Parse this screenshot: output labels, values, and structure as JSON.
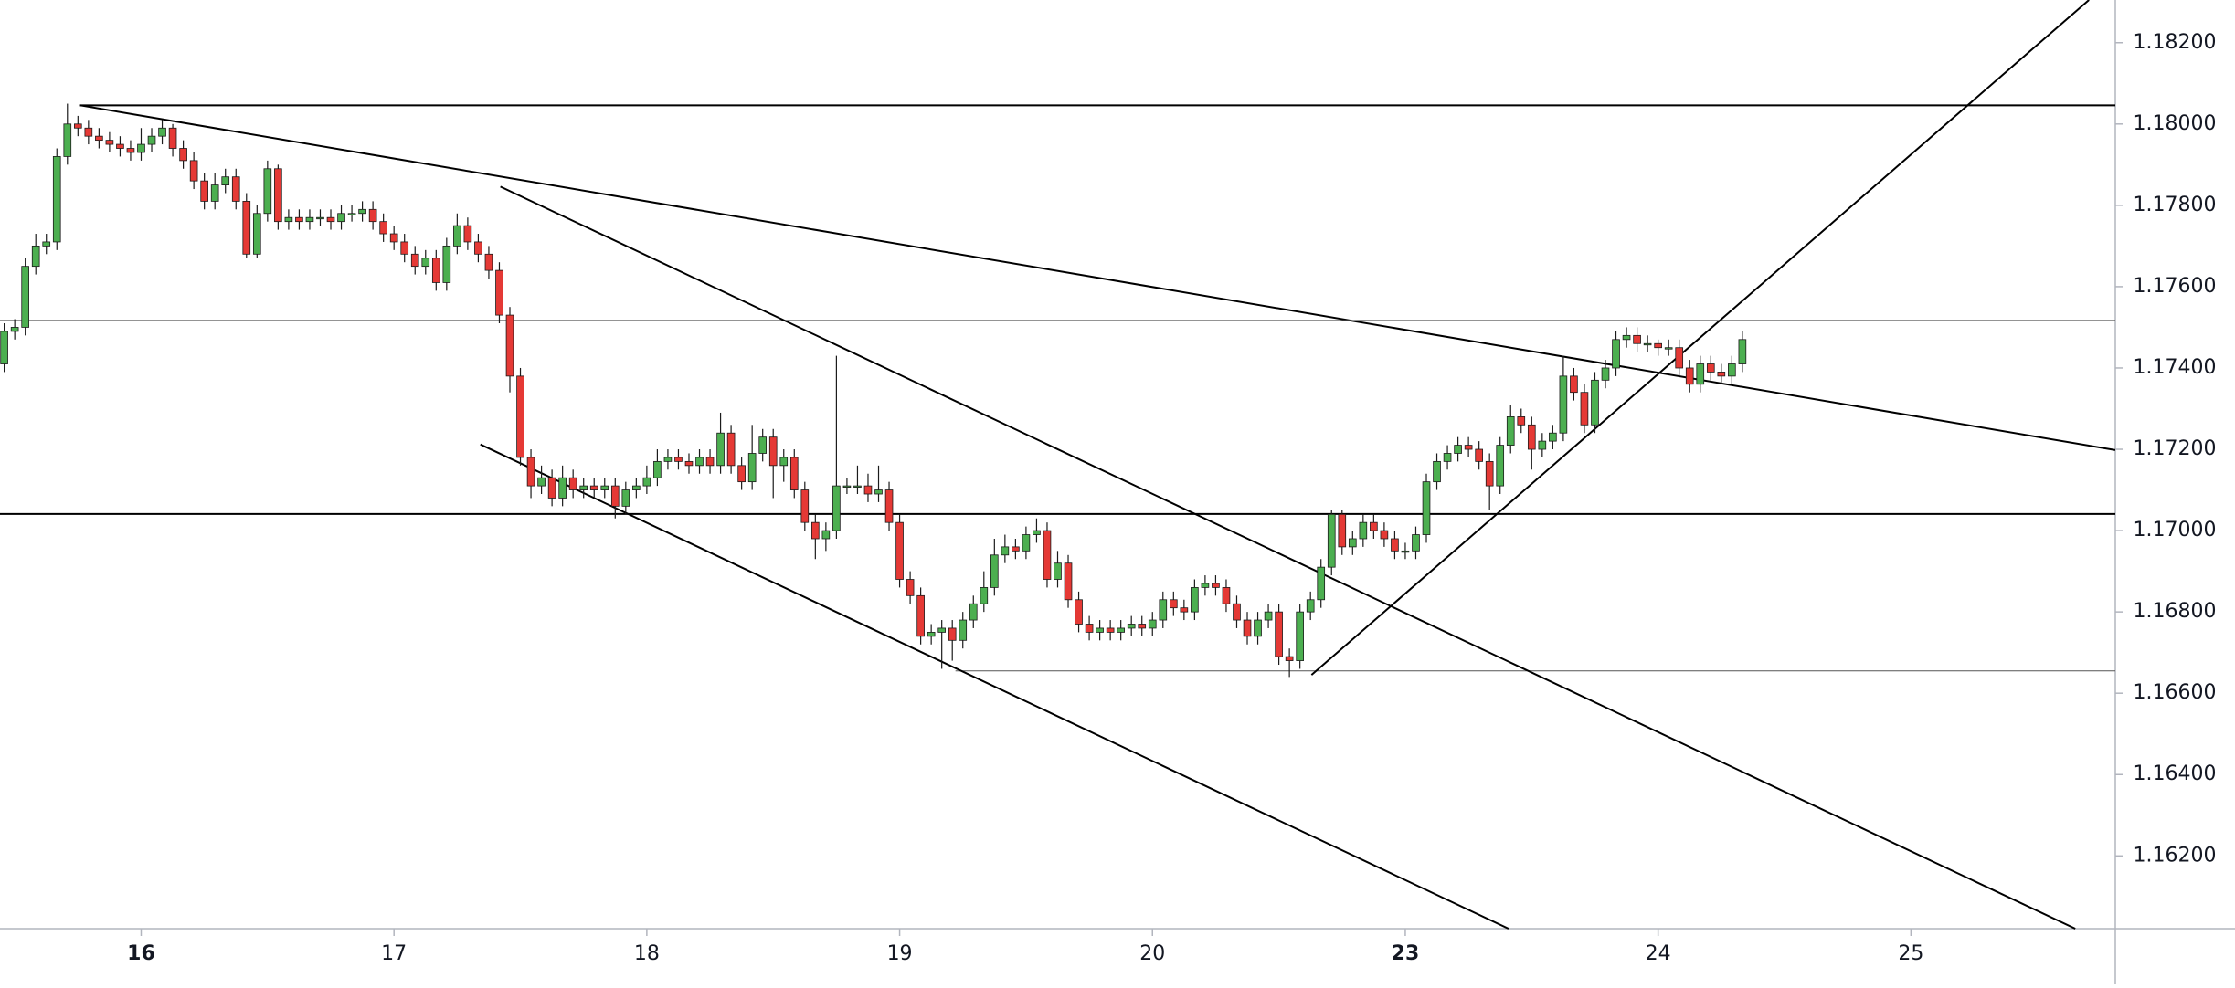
{
  "chart_data": {
    "type": "candlestick",
    "xlim": [
      -0.4,
      200.4
    ],
    "ylim": [
      1.16021,
      1.18305
    ],
    "yticks": [
      {
        "value": 1.162,
        "label": "1.16200"
      },
      {
        "value": 1.164,
        "label": "1.16400"
      },
      {
        "value": 1.166,
        "label": "1.16600"
      },
      {
        "value": 1.168,
        "label": "1.16800"
      },
      {
        "value": 1.17,
        "label": "1.17000"
      },
      {
        "value": 1.172,
        "label": "1.17200"
      },
      {
        "value": 1.174,
        "label": "1.17400"
      },
      {
        "value": 1.176,
        "label": "1.17600"
      },
      {
        "value": 1.178,
        "label": "1.17800"
      },
      {
        "value": 1.18,
        "label": "1.18000"
      },
      {
        "value": 1.182,
        "label": "1.18200"
      }
    ],
    "xticks": [
      {
        "value": 13,
        "label": "16",
        "bold": true
      },
      {
        "value": 37,
        "label": "17"
      },
      {
        "value": 61,
        "label": "18"
      },
      {
        "value": 85,
        "label": "19"
      },
      {
        "value": 109,
        "label": "20"
      },
      {
        "value": 133,
        "label": "23",
        "bold": true
      },
      {
        "value": 157,
        "label": "24"
      },
      {
        "value": 181,
        "label": "25"
      }
    ],
    "up_color": "#4caf50",
    "down_color": "#e53935",
    "border_color": "#1b1b1b",
    "open": [
      1.1741,
      1.1749,
      1.175,
      1.1765,
      1.177,
      1.1771,
      1.1792,
      1.18,
      1.1799,
      1.1797,
      1.1796,
      1.1795,
      1.1794,
      1.1793,
      1.1795,
      1.1797,
      1.1799,
      1.1794,
      1.1791,
      1.1786,
      1.1781,
      1.1785,
      1.1787,
      1.1781,
      1.1768,
      1.1778,
      1.1789,
      1.1776,
      1.1777,
      1.1776,
      1.1777,
      1.1777,
      1.1776,
      1.1778,
      1.1778,
      1.1779,
      1.1776,
      1.1773,
      1.1771,
      1.1768,
      1.1765,
      1.1767,
      1.1761,
      1.177,
      1.1775,
      1.1771,
      1.1768,
      1.1764,
      1.1753,
      1.1738,
      1.1718,
      1.1711,
      1.1713,
      1.1708,
      1.1713,
      1.171,
      1.1711,
      1.171,
      1.1711,
      1.1706,
      1.171,
      1.1711,
      1.1713,
      1.1717,
      1.1718,
      1.1717,
      1.1716,
      1.1718,
      1.1716,
      1.1724,
      1.1716,
      1.1712,
      1.1719,
      1.1723,
      1.1716,
      1.1718,
      1.171,
      1.1702,
      1.1698,
      1.17,
      1.1711,
      1.1711,
      1.1711,
      1.1709,
      1.171,
      1.1702,
      1.1688,
      1.1684,
      1.1674,
      1.1675,
      1.1676,
      1.1673,
      1.1678,
      1.1682,
      1.1686,
      1.1694,
      1.1696,
      1.1695,
      1.1699,
      1.17,
      1.1688,
      1.1692,
      1.1683,
      1.1677,
      1.1675,
      1.1676,
      1.1675,
      1.1676,
      1.1677,
      1.1676,
      1.1678,
      1.1683,
      1.1681,
      1.168,
      1.1686,
      1.1687,
      1.1686,
      1.1682,
      1.1678,
      1.1674,
      1.1678,
      1.168,
      1.1669,
      1.1668,
      1.168,
      1.1683,
      1.1691,
      1.1704,
      1.1696,
      1.1698,
      1.1702,
      1.17,
      1.1698,
      1.1695,
      1.1695,
      1.1699,
      1.1712,
      1.1717,
      1.1719,
      1.1721,
      1.172,
      1.1717,
      1.1711,
      1.1721,
      1.1728,
      1.1726,
      1.172,
      1.1722,
      1.1724,
      1.1738,
      1.1734,
      1.1726,
      1.1737,
      1.174,
      1.1747,
      1.1748,
      1.1746,
      1.1746,
      1.1745,
      1.1745,
      1.174,
      1.1736,
      1.1741,
      1.1739,
      1.1738,
      1.1741
    ],
    "high": [
      1.1751,
      1.1752,
      1.1767,
      1.1773,
      1.1773,
      1.1794,
      1.1805,
      1.1802,
      1.1801,
      1.1799,
      1.1798,
      1.1797,
      1.1796,
      1.1799,
      1.1799,
      1.1801,
      1.18,
      1.1796,
      1.1793,
      1.1788,
      1.1788,
      1.1789,
      1.1789,
      1.1783,
      1.178,
      1.1791,
      1.179,
      1.1779,
      1.1779,
      1.1779,
      1.1779,
      1.1779,
      1.178,
      1.178,
      1.1781,
      1.1781,
      1.1778,
      1.1775,
      1.1773,
      1.177,
      1.1769,
      1.1769,
      1.1772,
      1.1778,
      1.1777,
      1.1773,
      1.177,
      1.1766,
      1.1755,
      1.174,
      1.172,
      1.1716,
      1.1715,
      1.1716,
      1.1715,
      1.1713,
      1.1713,
      1.1713,
      1.1713,
      1.1712,
      1.1713,
      1.1716,
      1.172,
      1.172,
      1.172,
      1.1719,
      1.172,
      1.172,
      1.1729,
      1.1726,
      1.1718,
      1.1726,
      1.1725,
      1.1725,
      1.172,
      1.172,
      1.1712,
      1.1704,
      1.1702,
      1.1743,
      1.1713,
      1.1716,
      1.1714,
      1.1716,
      1.1712,
      1.1704,
      1.169,
      1.1686,
      1.1677,
      1.1678,
      1.1678,
      1.168,
      1.1684,
      1.169,
      1.1698,
      1.1699,
      1.1698,
      1.1701,
      1.1703,
      1.1702,
      1.1695,
      1.1694,
      1.1685,
      1.1679,
      1.1678,
      1.1678,
      1.1678,
      1.1679,
      1.1679,
      1.168,
      1.1685,
      1.1685,
      1.1683,
      1.1688,
      1.1689,
      1.1689,
      1.1688,
      1.1684,
      1.168,
      1.168,
      1.1682,
      1.1682,
      1.1671,
      1.1682,
      1.1685,
      1.1693,
      1.1705,
      1.1705,
      1.17,
      1.1704,
      1.1704,
      1.1702,
      1.17,
      1.1697,
      1.1701,
      1.1714,
      1.1719,
      1.1721,
      1.1723,
      1.1723,
      1.1722,
      1.1719,
      1.1723,
      1.1731,
      1.173,
      1.1728,
      1.1724,
      1.1726,
      1.1743,
      1.174,
      1.1736,
      1.1739,
      1.1742,
      1.1749,
      1.175,
      1.175,
      1.1748,
      1.1747,
      1.1747,
      1.1747,
      1.1742,
      1.1743,
      1.1743,
      1.1741,
      1.1743,
      1.1749
    ],
    "low": [
      1.1739,
      1.1747,
      1.1748,
      1.1763,
      1.1768,
      1.1769,
      1.179,
      1.1797,
      1.1795,
      1.1794,
      1.1793,
      1.1792,
      1.1791,
      1.1791,
      1.1793,
      1.1795,
      1.1792,
      1.1789,
      1.1784,
      1.1779,
      1.1779,
      1.1783,
      1.1779,
      1.1767,
      1.1767,
      1.1776,
      1.1774,
      1.1774,
      1.1774,
      1.1774,
      1.1775,
      1.1774,
      1.1774,
      1.1776,
      1.1776,
      1.1774,
      1.1771,
      1.1769,
      1.1766,
      1.1763,
      1.1763,
      1.1759,
      1.1759,
      1.1768,
      1.1769,
      1.1766,
      1.1762,
      1.1751,
      1.1734,
      1.1716,
      1.1708,
      1.1709,
      1.1706,
      1.1706,
      1.1708,
      1.1708,
      1.1708,
      1.1708,
      1.1703,
      1.1704,
      1.1708,
      1.1709,
      1.1711,
      1.1715,
      1.1715,
      1.1714,
      1.1714,
      1.1714,
      1.1714,
      1.1714,
      1.171,
      1.171,
      1.1717,
      1.1708,
      1.1712,
      1.1708,
      1.17,
      1.1693,
      1.1695,
      1.1698,
      1.1709,
      1.1709,
      1.1707,
      1.1707,
      1.17,
      1.1686,
      1.1682,
      1.1672,
      1.1672,
      1.1666,
      1.1668,
      1.1671,
      1.1676,
      1.168,
      1.1684,
      1.1692,
      1.1693,
      1.1693,
      1.1697,
      1.1686,
      1.1686,
      1.1681,
      1.1675,
      1.1673,
      1.1673,
      1.1673,
      1.1673,
      1.1674,
      1.1674,
      1.1674,
      1.1676,
      1.1679,
      1.1678,
      1.1678,
      1.1684,
      1.1684,
      1.168,
      1.1676,
      1.1672,
      1.1672,
      1.1676,
      1.1667,
      1.1664,
      1.1666,
      1.1678,
      1.1681,
      1.1689,
      1.1694,
      1.1694,
      1.1696,
      1.1698,
      1.1696,
      1.1693,
      1.1693,
      1.1693,
      1.1697,
      1.171,
      1.1715,
      1.1717,
      1.1718,
      1.1715,
      1.1705,
      1.1709,
      1.1719,
      1.1724,
      1.1715,
      1.1718,
      1.172,
      1.1722,
      1.1732,
      1.1724,
      1.1724,
      1.1735,
      1.1738,
      1.1745,
      1.1744,
      1.1744,
      1.1743,
      1.1743,
      1.1738,
      1.1734,
      1.1734,
      1.1737,
      1.1736,
      1.1736,
      1.1739
    ],
    "close": [
      1.1749,
      1.175,
      1.1765,
      1.177,
      1.1771,
      1.1792,
      1.18,
      1.1799,
      1.1797,
      1.1796,
      1.1795,
      1.1794,
      1.1793,
      1.1795,
      1.1797,
      1.1799,
      1.1794,
      1.1791,
      1.1786,
      1.1781,
      1.1785,
      1.1787,
      1.1781,
      1.1768,
      1.1778,
      1.1789,
      1.1776,
      1.1777,
      1.1776,
      1.1777,
      1.1777,
      1.1776,
      1.1778,
      1.1778,
      1.1779,
      1.1776,
      1.1773,
      1.1771,
      1.1768,
      1.1765,
      1.1767,
      1.1761,
      1.177,
      1.1775,
      1.1771,
      1.1768,
      1.1764,
      1.1753,
      1.1738,
      1.1718,
      1.1711,
      1.1713,
      1.1708,
      1.1713,
      1.171,
      1.1711,
      1.171,
      1.1711,
      1.1706,
      1.171,
      1.1711,
      1.1713,
      1.1717,
      1.1718,
      1.1717,
      1.1716,
      1.1718,
      1.1716,
      1.1724,
      1.1716,
      1.1712,
      1.1719,
      1.1723,
      1.1716,
      1.1718,
      1.171,
      1.1702,
      1.1698,
      1.17,
      1.1711,
      1.1711,
      1.1711,
      1.1709,
      1.171,
      1.1702,
      1.1688,
      1.1684,
      1.1674,
      1.1675,
      1.1676,
      1.1673,
      1.1678,
      1.1682,
      1.1686,
      1.1694,
      1.1696,
      1.1695,
      1.1699,
      1.17,
      1.1688,
      1.1692,
      1.1683,
      1.1677,
      1.1675,
      1.1676,
      1.1675,
      1.1676,
      1.1677,
      1.1676,
      1.1678,
      1.1683,
      1.1681,
      1.168,
      1.1686,
      1.1687,
      1.1686,
      1.1682,
      1.1678,
      1.1674,
      1.1678,
      1.168,
      1.1669,
      1.1668,
      1.168,
      1.1683,
      1.1691,
      1.1704,
      1.1696,
      1.1698,
      1.1702,
      1.17,
      1.1698,
      1.1695,
      1.1695,
      1.1699,
      1.1712,
      1.1717,
      1.1719,
      1.1721,
      1.172,
      1.1717,
      1.1711,
      1.1721,
      1.1728,
      1.1726,
      1.172,
      1.1722,
      1.1724,
      1.1738,
      1.1734,
      1.1726,
      1.1737,
      1.174,
      1.1747,
      1.1748,
      1.1746,
      1.1746,
      1.1745,
      1.1745,
      1.174,
      1.1736,
      1.1741,
      1.1739,
      1.1738,
      1.1741,
      1.1747
    ],
    "lines": [
      {
        "x": [
          7.2,
          200.4
        ],
        "y": [
          1.18046,
          1.18046
        ],
        "width": 2
      },
      {
        "x": [
          7.2,
          200.4
        ],
        "y": [
          1.18046,
          1.17198
        ],
        "width": 2
      },
      {
        "x": [
          -0.4,
          200.4
        ],
        "y": [
          1.17517,
          1.17517
        ],
        "width": 1
      },
      {
        "x": [
          -0.4,
          200.4
        ],
        "y": [
          1.17041,
          1.17041
        ],
        "width": 2
      },
      {
        "x": [
          90.3,
          200.4
        ],
        "y": [
          1.16655,
          1.16655
        ],
        "width": 1
      },
      {
        "x": [
          47.1,
          196.6
        ],
        "y": [
          1.17846,
          1.16021
        ],
        "width": 2
      },
      {
        "x": [
          45.2,
          142.8
        ],
        "y": [
          1.17212,
          1.16021
        ],
        "width": 2
      },
      {
        "x": [
          124.1,
          197.9
        ],
        "y": [
          1.16645,
          1.18305
        ],
        "width": 2
      }
    ]
  }
}
